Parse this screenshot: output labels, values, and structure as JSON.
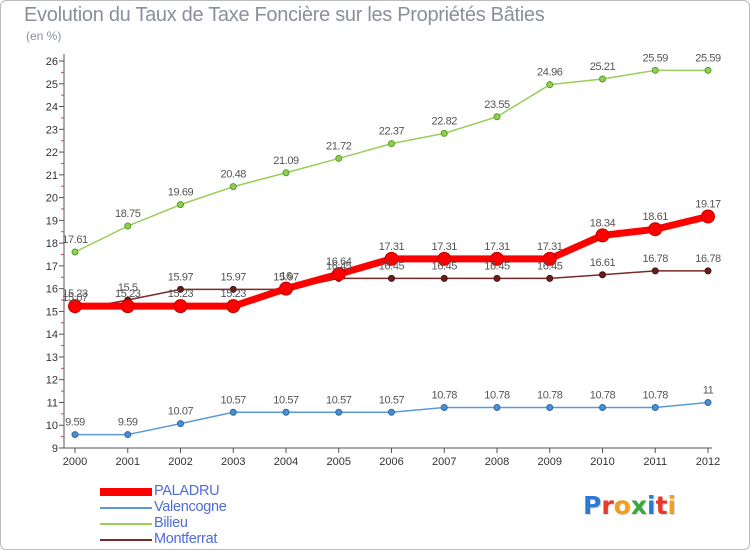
{
  "title": "Evolution du Taux de Taxe Foncière sur les Propriétés Bâties",
  "subtitle": "(en %)",
  "logo": {
    "text": "Proxiti",
    "letters": [
      "P",
      "r",
      "o",
      "x",
      "i",
      "t",
      "i"
    ],
    "colors": [
      "#2a7bd8",
      "#e8392b",
      "#f0a020",
      "#3aa83a",
      "#2a7bd8",
      "#e8392b",
      "#f0a020"
    ]
  },
  "chart_data": {
    "type": "line",
    "title": "Evolution du Taux de Taxe Foncière sur les Propriétés Bâties",
    "subtitle": "(en %)",
    "xlabel": "",
    "ylabel": "",
    "x": [
      "2000",
      "2001",
      "2002",
      "2003",
      "2004",
      "2005",
      "2006",
      "2007",
      "2008",
      "2009",
      "2010",
      "2011",
      "2012"
    ],
    "yticks": [
      9,
      10,
      11,
      12,
      13,
      14,
      15,
      16,
      17,
      18,
      19,
      20,
      21,
      22,
      23,
      24,
      25,
      26
    ],
    "ylim": [
      9,
      26
    ],
    "grid": false,
    "legend_position": "bottom-left",
    "series": [
      {
        "name": "PALADRU",
        "color": "#ff0000",
        "values": [
          15.23,
          15.23,
          15.23,
          15.23,
          16,
          16.64,
          17.31,
          17.31,
          17.31,
          17.31,
          18.34,
          18.61,
          19.17
        ],
        "labels": [
          "15.23",
          "15.23",
          "15.23",
          "15.23",
          "16",
          "16.64",
          "17.31",
          "17.31",
          "17.31",
          "17.31",
          "18.34",
          "18.61",
          "19.17"
        ]
      },
      {
        "name": "Valencogne",
        "color": "#5b9bd5",
        "values": [
          9.59,
          9.59,
          10.07,
          10.57,
          10.57,
          10.57,
          10.57,
          10.78,
          10.78,
          10.78,
          10.78,
          10.78,
          11
        ],
        "labels": [
          "9.59",
          "9.59",
          "10.07",
          "10.57",
          "10.57",
          "10.57",
          "10.57",
          "10.78",
          "10.78",
          "10.78",
          "10.78",
          "10.78",
          "11"
        ]
      },
      {
        "name": "Bilieu",
        "color": "#9acd5a",
        "values": [
          17.61,
          18.75,
          19.69,
          20.48,
          21.09,
          21.72,
          22.37,
          22.82,
          23.55,
          24.96,
          25.21,
          25.59,
          25.59
        ],
        "labels": [
          "17.61",
          "18.75",
          "19.69",
          "20.48",
          "21.09",
          "21.72",
          "22.37",
          "22.82",
          "23.55",
          "24.96",
          "25.21",
          "25.59",
          "25.59"
        ]
      },
      {
        "name": "Montferrat",
        "color": "#7a2a2a",
        "values": [
          15.07,
          15.5,
          15.97,
          15.97,
          15.97,
          16.45,
          16.45,
          16.45,
          16.45,
          16.45,
          16.61,
          16.78,
          16.78
        ],
        "labels": [
          "15.07",
          "15.5",
          "15.97",
          "15.97",
          "15.97",
          "16.45",
          "16.45",
          "16.45",
          "16.45",
          "16.45",
          "16.61",
          "16.78",
          "16.78"
        ]
      }
    ]
  }
}
